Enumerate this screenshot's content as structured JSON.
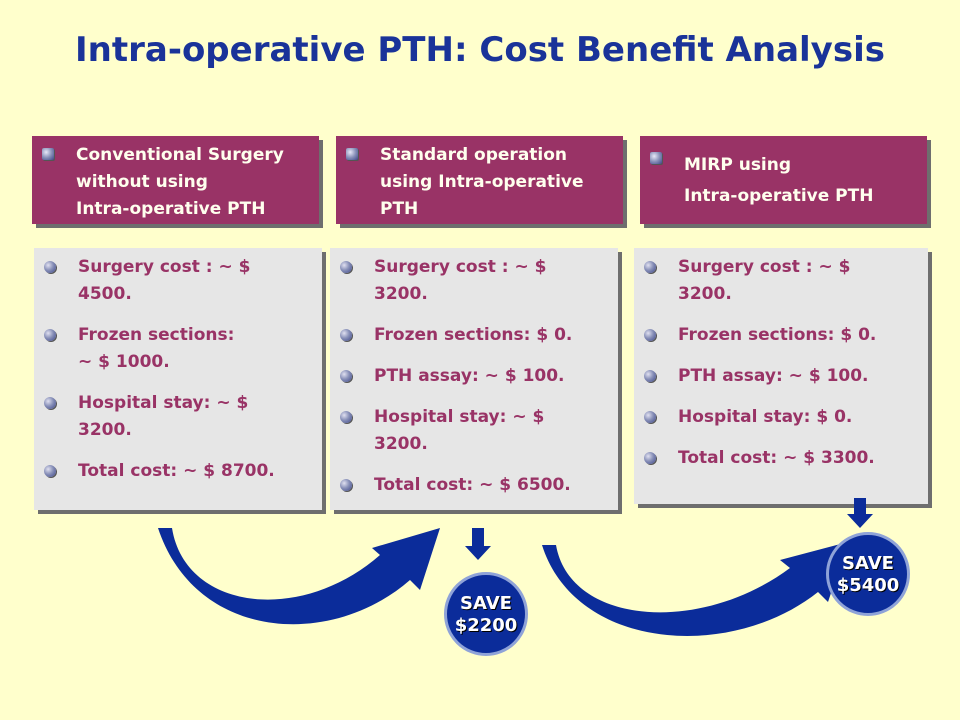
{
  "title": "Intra-operative PTH: Cost Benefit Analysis",
  "colors": {
    "background": "#FFFFCC",
    "title": "#1A3399",
    "header_box": "#993366",
    "cost_box": "#E6E6E6",
    "cost_text": "#993366",
    "arrow": "#0B2C9A"
  },
  "columns": [
    {
      "header": "Conventional Surgery\nwithout using\nIntra-operative PTH",
      "items": [
        "Surgery cost : ~ $\n4500.",
        "Frozen sections:\n~ $ 1000.",
        "Hospital stay: ~ $\n3200.",
        "Total cost: ~ $ 8700."
      ]
    },
    {
      "header": "Standard operation\nusing Intra-operative\nPTH",
      "items": [
        "Surgery cost : ~ $\n3200.",
        "Frozen sections: $ 0.",
        "PTH assay: ~ $ 100.",
        "Hospital stay: ~ $\n3200.",
        "Total cost: ~ $ 6500."
      ]
    },
    {
      "header": "MIRP using\nIntra-operative PTH",
      "items": [
        "Surgery cost : ~ $\n3200.",
        "Frozen sections: $ 0.",
        "PTH assay: ~ $ 100.",
        "Hospital stay: $ 0.",
        "Total cost: ~ $ 3300."
      ]
    }
  ],
  "savings": [
    {
      "label": "SAVE",
      "amount": "$2200"
    },
    {
      "label": "SAVE",
      "amount": "$5400"
    }
  ]
}
